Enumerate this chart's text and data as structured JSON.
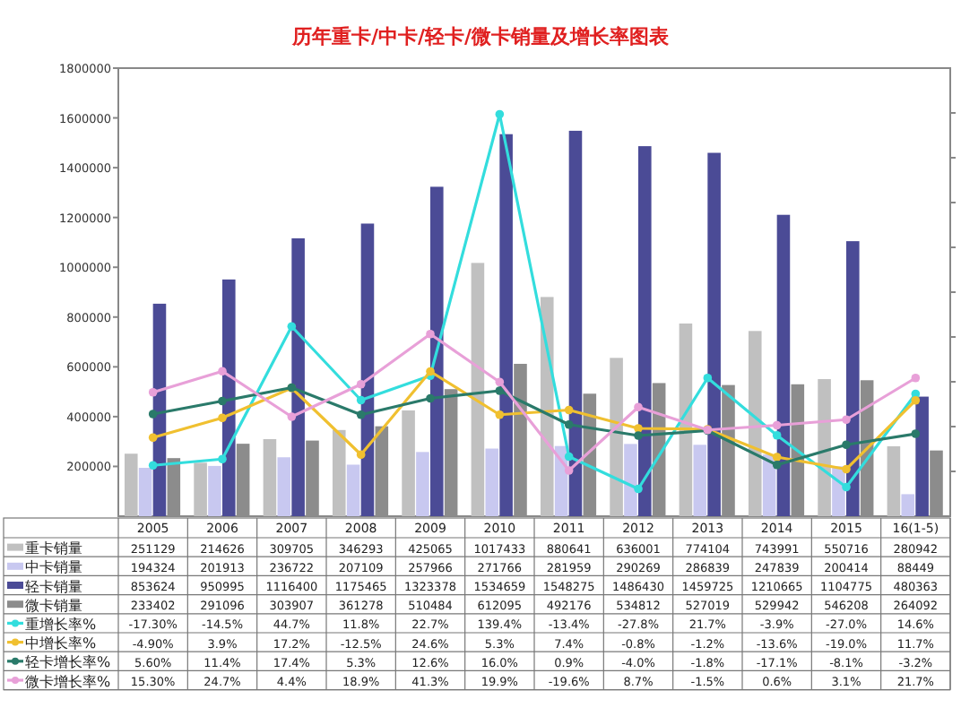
{
  "chart_data": {
    "type": "bar",
    "title": "历年重卡/中卡/轻卡/微卡销量及增长率图表",
    "categories": [
      "2005",
      "2006",
      "2007",
      "2008",
      "2009",
      "2010",
      "2011",
      "2012",
      "2013",
      "2014",
      "2015",
      "16(1-5)"
    ],
    "series": [
      {
        "name": "重卡销量",
        "color": "#c0c0c0",
        "values": [
          251129,
          214626,
          309705,
          346293,
          425065,
          1017433,
          880641,
          636001,
          774104,
          743991,
          550716,
          280942
        ]
      },
      {
        "name": "中卡销量",
        "color": "#c8c8f0",
        "values": [
          194324,
          201913,
          236722,
          207109,
          257966,
          271766,
          281959,
          290269,
          286839,
          247839,
          200414,
          88449
        ]
      },
      {
        "name": "轻卡销量",
        "color": "#4b4b96",
        "values": [
          853624,
          950995,
          1116400,
          1175465,
          1323378,
          1534659,
          1548275,
          1486430,
          1459725,
          1210665,
          1104775,
          480363
        ]
      },
      {
        "name": "微卡销量",
        "color": "#8c8c8c",
        "values": [
          233402,
          291096,
          303907,
          361278,
          510484,
          612095,
          492176,
          534812,
          527019,
          529942,
          546208,
          264092
        ]
      },
      {
        "name": "重增长率%",
        "type": "line",
        "axis": "y2",
        "color": "#33dddd",
        "values": [
          -17.3,
          -14.5,
          44.7,
          11.8,
          22.7,
          139.4,
          -13.4,
          -27.8,
          21.7,
          -3.9,
          -27.0,
          14.6
        ],
        "value_labels": [
          "-17.30%",
          "-14.5%",
          "44.7%",
          "11.8%",
          "22.7%",
          "139.4%",
          "-13.4%",
          "-27.8%",
          "21.7%",
          "-3.9%",
          "-27.0%",
          "14.6%"
        ]
      },
      {
        "name": "中增长率%",
        "type": "line",
        "axis": "y2",
        "color": "#f0c030",
        "values": [
          -4.9,
          3.9,
          17.2,
          -12.5,
          24.6,
          5.3,
          7.4,
          -0.8,
          -1.2,
          -13.6,
          -19.0,
          11.7
        ],
        "value_labels": [
          "-4.90%",
          "3.9%",
          "17.2%",
          "-12.5%",
          "24.6%",
          "5.3%",
          "7.4%",
          "-0.8%",
          "-1.2%",
          "-13.6%",
          "-19.0%",
          "11.7%"
        ]
      },
      {
        "name": "轻卡增长率%",
        "type": "line",
        "axis": "y2",
        "color": "#2a7a6a",
        "values": [
          5.6,
          11.4,
          17.4,
          5.3,
          12.6,
          16.0,
          0.9,
          -4.0,
          -1.8,
          -17.1,
          -8.1,
          -3.2
        ],
        "value_labels": [
          "5.60%",
          "11.4%",
          "17.4%",
          "5.3%",
          "12.6%",
          "16.0%",
          "0.9%",
          "-4.0%",
          "-1.8%",
          "-17.1%",
          "-8.1%",
          "-3.2%"
        ]
      },
      {
        "name": "微卡增长率%",
        "type": "line",
        "axis": "y2",
        "color": "#e8a0d8",
        "values": [
          15.3,
          24.7,
          4.4,
          18.9,
          41.3,
          19.9,
          -19.6,
          8.7,
          -1.5,
          0.6,
          3.1,
          21.7
        ],
        "value_labels": [
          "15.30%",
          "24.7%",
          "4.4%",
          "18.9%",
          "41.3%",
          "19.9%",
          "-19.6%",
          "8.7%",
          "-1.5%",
          "0.6%",
          "3.1%",
          "21.7%"
        ]
      }
    ],
    "ylim": [
      0,
      1800000
    ],
    "yticks": [
      200000,
      400000,
      600000,
      800000,
      1000000,
      1200000,
      1400000,
      1600000,
      1800000
    ],
    "y2lim": [
      -40,
      160
    ],
    "y2ticks": [
      {
        "value": -20,
        "label": null
      },
      {
        "value": 0,
        "label": null
      },
      {
        "value": 20,
        "label": null
      },
      {
        "value": 40,
        "label": null
      },
      {
        "value": 60,
        "label": null
      },
      {
        "value": 80,
        "label": null
      },
      {
        "value": 100,
        "label": null
      },
      {
        "value": 120,
        "label": null
      },
      {
        "value": 140,
        "label": null
      }
    ],
    "data_labels": true,
    "legend": "bottom left",
    "marker": "circle",
    "grid": false
  }
}
